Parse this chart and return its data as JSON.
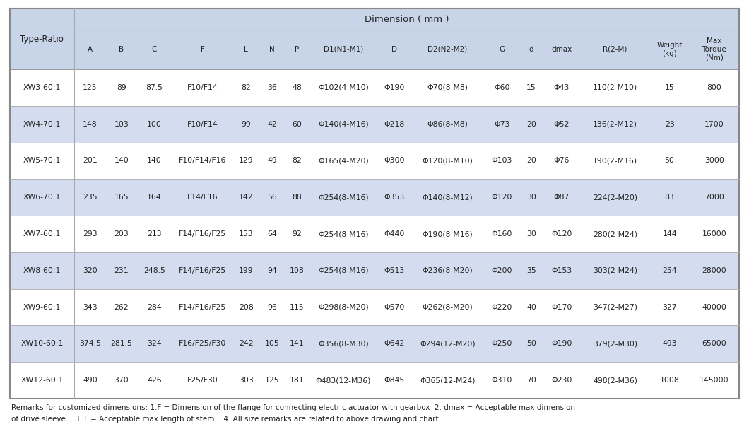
{
  "dim_title": "Dimension ( mm )",
  "col_headers": [
    "Type-Ratio",
    "A",
    "B",
    "C",
    "F",
    "L",
    "N",
    "P",
    "D1(N1-M1)",
    "D",
    "D2(N2-M2)",
    "G",
    "d",
    "dmax",
    "R(2-M)",
    "Weight\n(kg)",
    "Max\nTorque\n(Nm)"
  ],
  "rows": [
    [
      "XW3-60:1",
      "125",
      "89",
      "87.5",
      "F10/F14",
      "82",
      "36",
      "48",
      "Φ102(4-M10)",
      "Φ190",
      "Φ70(8-M8)",
      "Φ60",
      "15",
      "Φ43",
      "110(2-M10)",
      "15",
      "800"
    ],
    [
      "XW4-70:1",
      "148",
      "103",
      "100",
      "F10/F14",
      "99",
      "42",
      "60",
      "Φ140(4-M16)",
      "Φ218",
      "Φ86(8-M8)",
      "Φ73",
      "20",
      "Φ52",
      "136(2-M12)",
      "23",
      "1700"
    ],
    [
      "XW5-70:1",
      "201",
      "140",
      "140",
      "F10/F14/F16",
      "129",
      "49",
      "82",
      "Φ165(4-M20)",
      "Φ300",
      "Φ120(8-M10)",
      "Φ103",
      "20",
      "Φ76",
      "190(2-M16)",
      "50",
      "3000"
    ],
    [
      "XW6-70:1",
      "235",
      "165",
      "164",
      "F14/F16",
      "142",
      "56",
      "88",
      "Φ254(8-M16)",
      "Φ353",
      "Φ140(8-M12)",
      "Φ120",
      "30",
      "Φ87",
      "224(2-M20)",
      "83",
      "7000"
    ],
    [
      "XW7-60:1",
      "293",
      "203",
      "213",
      "F14/F16/F25",
      "153",
      "64",
      "92",
      "Φ254(8-M16)",
      "Φ440",
      "Φ190(8-M16)",
      "Φ160",
      "30",
      "Φ120",
      "280(2-M24)",
      "144",
      "16000"
    ],
    [
      "XW8-60:1",
      "320",
      "231",
      "248.5",
      "F14/F16/F25",
      "199",
      "94",
      "108",
      "Φ254(8-M16)",
      "Φ513",
      "Φ236(8-M20)",
      "Φ200",
      "35",
      "Φ153",
      "303(2-M24)",
      "254",
      "28000"
    ],
    [
      "XW9-60:1",
      "343",
      "262",
      "284",
      "F14/F16/F25",
      "208",
      "96",
      "115",
      "Φ298(8-M20)",
      "Φ570",
      "Φ262(8-M20)",
      "Φ220",
      "40",
      "Φ170",
      "347(2-M27)",
      "327",
      "40000"
    ],
    [
      "XW10-60:1",
      "374.5",
      "281.5",
      "324",
      "F16/F25/F30",
      "242",
      "105",
      "141",
      "Φ356(8-M30)",
      "Φ642",
      "Φ294(12-M20)",
      "Φ250",
      "50",
      "Φ190",
      "379(2-M30)",
      "493",
      "65000"
    ],
    [
      "XW12-60:1",
      "490",
      "370",
      "426",
      "F25/F30",
      "303",
      "125",
      "181",
      "Φ483(12-M36)",
      "Φ845",
      "Φ365(12-M24)",
      "Φ310",
      "70",
      "Φ230",
      "498(2-M36)",
      "1008",
      "145000"
    ]
  ],
  "shaded_rows": [
    1,
    3,
    5,
    7
  ],
  "shade_color": "#d4ddf0",
  "header_bg": "#c8d4e8",
  "bg_color": "#ffffff",
  "line_color_dark": "#888888",
  "line_color_light": "#aaaaaa",
  "text_color": "#222222",
  "remark_line1": "Remarks for customized dimensions: 1.F = Dimension of the flange for connecting electric actuator with gearbox  2. dmax = Acceptable max dimension",
  "remark_line2": "of drive sleeve    3. L = Acceptable max length of stem    4. All size remarks are related to above drawing and chart."
}
